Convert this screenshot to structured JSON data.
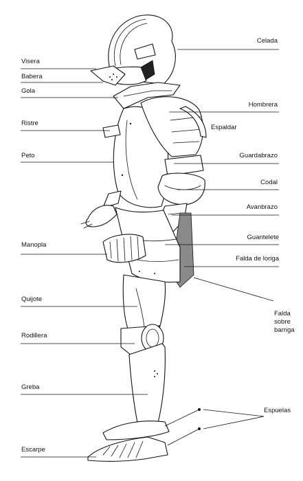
{
  "labels": {
    "celada": "Celada",
    "visera": "Visera",
    "babera": "Babera",
    "gola": "Gola",
    "hombrera": "Hombrera",
    "ristre": "Ristre",
    "espaldar": "Espaldar",
    "peto": "Peto",
    "guardabrazo": "Guardabrazo",
    "codal": "Codal",
    "avanbrazo": "Avanbrazo",
    "guantelete": "Guantelete",
    "manopla": "Manopla",
    "falda_loriga": "Falda de loriga",
    "falda_sobre_1": "Falda",
    "falda_sobre_2": "sobre",
    "falda_sobre_3": "barriga",
    "quijote": "Quijote",
    "rodillera": "Rodillera",
    "greba": "Greba",
    "espuelas": "Espuelas",
    "escarpe": "Escarpe"
  }
}
